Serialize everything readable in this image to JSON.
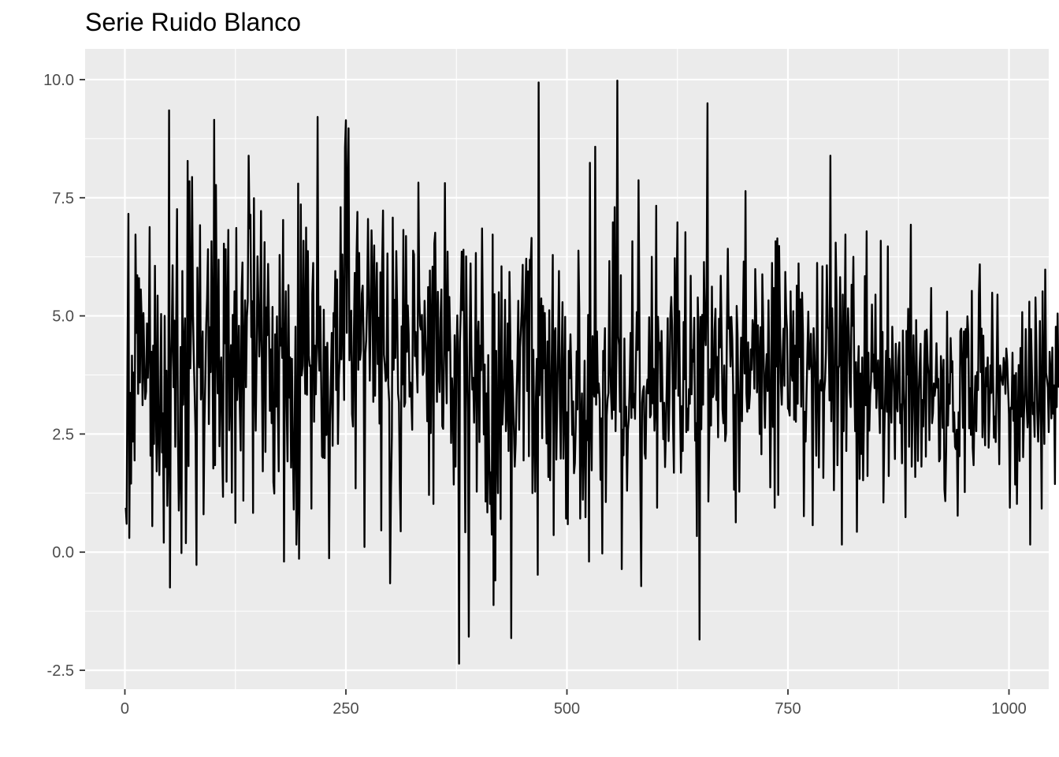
{
  "chart_data": {
    "type": "line",
    "title": "Serie Ruido Blanco",
    "xlabel": "",
    "ylabel": "",
    "xlim": [
      -45,
      1045
    ],
    "ylim": [
      -2.9,
      10.65
    ],
    "x_ticks": [
      0,
      250,
      500,
      750,
      1000
    ],
    "x_tick_labels": [
      "0",
      "250",
      "500",
      "750",
      "1000"
    ],
    "y_ticks": [
      -2.5,
      0,
      2.5,
      5,
      7.5,
      10
    ],
    "y_tick_labels": [
      "-2.5",
      "0.0",
      "2.5",
      "5.0",
      "7.5",
      "10.0"
    ],
    "grid": true,
    "legend": "none",
    "line_color": "#000000",
    "panel_background": "#ebebeb",
    "grid_color": "#ffffff",
    "series": [
      {
        "x_start": 1,
        "x_step": 1,
        "values": [
          0.94,
          0.6,
          4.2,
          7.16,
          0.3,
          3.37,
          1.45,
          4.16,
          2.34,
          3.8,
          1.94,
          6.72,
          4.64,
          5.86,
          3.35,
          5.8,
          3.59,
          5.56,
          4.91,
          3.11,
          5.06,
          4.01,
          3.24,
          3.4,
          4.84,
          3.69,
          4.41,
          6.88,
          2.04,
          4.24,
          0.55,
          4.37,
          2.29,
          6.06,
          3.19,
          1.71,
          5.43,
          2.55,
          1.63,
          3.14,
          5.04,
          2.11,
          2.94,
          0.2,
          5.0,
          1.8,
          3.84,
          0.98,
          2.06,
          9.35,
          -0.75,
          3.82,
          4.58,
          6.07,
          3.49,
          4.9,
          2.23,
          4.81,
          7.26,
          2.49,
          0.88,
          1.72,
          4.34,
          -0.02,
          5.95,
          3.12,
          4.26,
          4.95,
          0.19,
          2.44,
          8.28,
          1.82,
          7.85,
          3.89,
          4.93,
          7.94,
          5.08,
          4.04,
          3.3,
          2.44,
          -0.27,
          6.02,
          4.34,
          3.91,
          6.92,
          3.23,
          3.99,
          4.67,
          0.8,
          2.7,
          3.67,
          4.79,
          5.37,
          6.41,
          2.71,
          4.76,
          3.81,
          6.58,
          4.63,
          1.77,
          9.15,
          1.84,
          7.77,
          4.47,
          3.36,
          6.19,
          2.24,
          3.83,
          4.12,
          2.21,
          1.17,
          6.53,
          4.42,
          6.41,
          1.49,
          5.03,
          6.82,
          2.58,
          3.5,
          4.38,
          1.26,
          5.02,
          3.71,
          5.52,
          0.62,
          6.86,
          3.22,
          3.71,
          4.79,
          3.07,
          2.15,
          5.5,
          6.13,
          1.09,
          4.42,
          5.33,
          3.49,
          4.97,
          5.31,
          8.39,
          6.85,
          7.14,
          4.55,
          5.31,
          0.83,
          7.49,
          3.65,
          2.57,
          4.16,
          6.26,
          5.33,
          4.14,
          4.66,
          7.22,
          3.8,
          1.71,
          4.34,
          6.56,
          2.12,
          5.18,
          4.59,
          6.1,
          4.83,
          2.99,
          4.29,
          2.73,
          5.19,
          1.48,
          1.24,
          4.61,
          3.08,
          4.99,
          3.05,
          1.71,
          6.29,
          4.37,
          4.73,
          4.11,
          7.03,
          -0.2,
          4.29,
          5.52,
          3.09,
          1.92,
          5.65,
          3.27,
          4.12,
          1.79,
          4.09,
          2.21,
          0.9,
          2.6,
          4.77,
          0.16,
          1.04,
          7.8,
          -0.14,
          2.55,
          7.36,
          3.74,
          3.94,
          6.59,
          4.48,
          3.35,
          6.87,
          3.33,
          6.37,
          4.17,
          3.94,
          3.95,
          0.92,
          5.46,
          6.12,
          2.76,
          4.37,
          3.34,
          4.62,
          9.21,
          4.34,
          3.84,
          5.2,
          3.67,
          2.03,
          2.0,
          5.13,
          1.99,
          4.34,
          2.48,
          4.43,
          3.09,
          -0.13,
          2.7,
          3.67,
          4.64,
          2.25,
          5.06,
          4.77,
          5.95,
          3.43,
          5.77,
          2.29,
          3.66,
          4.1,
          7.3,
          4.08,
          6.3,
          4.85,
          3.22,
          8.56,
          9.14,
          4.64,
          7.65,
          8.97,
          4.06,
          4.66,
          5.11,
          2.92,
          2.66,
          4.58,
          5.91,
          1.35,
          6.19,
          7.2,
          3.86,
          6.33,
          4.07,
          4.27,
          5.47,
          5.64,
          4.54,
          0.11,
          4.19,
          4.49,
          5.28,
          7.05,
          5.35,
          3.63,
          4.98,
          6.81,
          5.78,
          3.18,
          6.49,
          3.31,
          5.17,
          6.12,
          3.98,
          4.96,
          2.72,
          5.92,
          0.46,
          6.06,
          7.23,
          4.18,
          3.96,
          3.62,
          3.71,
          6.32,
          3.54,
          3.18,
          -0.66,
          1.35,
          2.45,
          7.08,
          3.86,
          5.34,
          4.11,
          6.37,
          5.15,
          3.36,
          3.17,
          1.44,
          0.44,
          4.78,
          3.55,
          6.82,
          3.08,
          3.16,
          6.69,
          4.24,
          5.22,
          4.62,
          3.29,
          3.59,
          3.29,
          2.59,
          6.38,
          6.3,
          4.15,
          4.66,
          4.02,
          3.38,
          7.82,
          5.44,
          4.79,
          4.71,
          5.02,
          3.75,
          3.83,
          5.32,
          4.49,
          4.06,
          2.77,
          5.61,
          1.21,
          5.96,
          2.52,
          4.79,
          6.04,
          1.02,
          6.53,
          6.76,
          4.74,
          3.18,
          5.51,
          3.72,
          3.39,
          4.93,
          5.56,
          2.67,
          2.61,
          4.22,
          7.81,
          4.38,
          3.15,
          6.36,
          4.27,
          5.4,
          4.39,
          2.31,
          3.68,
          3.17,
          1.43,
          4.59,
          1.81,
          4.0,
          5.01,
          3.98,
          -2.36,
          4.45,
          5.17,
          6.36,
          5.12,
          6.4,
          3.69,
          0.42,
          6.26,
          4.2,
          2.97,
          -1.79,
          4.35,
          6.11,
          4.15,
          3.44,
          3.69,
          2.74,
          3.79,
          6.33,
          1.28,
          4.47,
          4.88,
          2.33,
          4.37,
          3.85,
          6.85,
          4.76,
          2.49,
          3.97,
          1.07,
          3.36,
          0.84,
          4.17,
          2.08,
          1.02,
          1.69,
          0.37,
          6.72,
          -1.12,
          5.46,
          -0.6,
          4.26,
          2.3,
          1.25,
          5.5,
          3.57,
          0.7,
          6.05,
          2.7,
          3.21,
          3.69,
          5.34,
          2.56,
          2.91,
          4.84,
          2.14,
          5.93,
          4.55,
          -1.82,
          4.05,
          3.32,
          2.65,
          1.81,
          2.29,
          3.27,
          4.04,
          5.32,
          2.59,
          4.33,
          4.72,
          5.24,
          6.08,
          1.94,
          4.71,
          5.43,
          6.21,
          3.41,
          5.94,
          2.03,
          6.19,
          6.13,
          6.65,
          1.25,
          4.28,
          2.58,
          1.28,
          3.29,
          4.09,
          -0.48,
          9.94,
          3.32,
          4.1,
          5.37,
          2.41,
          5.21,
          3.89,
          5.06,
          3.29,
          2.3,
          4.46,
          1.59,
          5.12,
          1.52,
          3.11,
          4.34,
          6.29,
          0.36,
          4.64,
          4.74,
          1.96,
          3.23,
          4.34,
          5.95,
          3.23,
          1.98,
          4.04,
          5.29,
          1.98,
          3.13,
          4.98,
          0.71,
          2.96,
          0.59,
          4.26,
          3.68,
          4.61,
          3.72,
          2.48,
          3.19,
          1.67,
          1.88,
          2.71,
          4.25,
          3.02,
          6.38,
          5.13,
          0.71,
          2.79,
          3.36,
          1.11,
          2.47,
          4.05,
          0.74,
          2.78,
          2.37,
          5.02,
          -0.2,
          8.24,
          2.98,
          1.73,
          4.57,
          3.43,
          3.29,
          8.58,
          3.12,
          4.67,
          3.37,
          3.57,
          3.23,
          1.53,
          2.83,
          -0.03,
          4.26,
          3.85,
          4.74,
          1.06,
          2.89,
          3.24,
          3.37,
          6.16,
          3.94,
          3.29,
          2.82,
          6.98,
          3.01,
          7.3,
          2.56,
          4.25,
          9.98,
          4.57,
          4.38,
          2.97,
          5.86,
          -0.36,
          2.59,
          2.05,
          4.52,
          2.67,
          3.08,
          1.3,
          2.58,
          2.82,
          3.56,
          4.64,
          2.84,
          6.58,
          3.06,
          3.35,
          2.82,
          3.96,
          5.08,
          4.28,
          7.87,
          4.95,
          1.62,
          -0.72,
          3.16,
          3.41,
          3.51,
          2.09,
          1.98,
          3.4,
          3.65,
          3.36,
          4.97,
          2.85,
          2.91,
          6.25,
          3.15,
          3.88,
          2.57,
          3.06,
          7.33,
          0.94,
          4.98,
          4.29,
          4.43,
          3.19,
          4.68,
          3.42,
          2.39,
          3.16,
          1.8,
          2.61,
          3.61,
          4.95,
          2.35,
          3.32,
          4.99,
          5.4,
          4.76,
          2.71,
          1.68,
          6.22,
          3.46,
          5.3,
          6.98,
          3.31,
          5.1,
          3.03,
          1.68,
          3.09,
          2.14,
          4.87,
          3.66,
          6.77,
          2.54,
          3.04,
          2.58,
          3.45,
          3.14,
          5.85,
          3.34,
          4.28,
          4.03,
          4.96,
          2.36,
          2.73,
          0.34,
          5.39,
          4.45,
          -1.85,
          4.98,
          2.6,
          5.02,
          3.12,
          6.14,
          4.67,
          4.38,
          5.62,
          9.5,
          1.07,
          2.44,
          3.87,
          2.68,
          5.62,
          3.28,
          3.35,
          4.7,
          5.15,
          3.22,
          4.13,
          2.43,
          4.94,
          4.33,
          5.85,
          4.58,
          3.02,
          2.73,
          3.95,
          2.35,
          2.51,
          4.81,
          6.42,
          4.73,
          4.97,
          3.93,
          4.98,
          4.51,
          3.52,
          1.32,
          3.33,
          0.63,
          5.21,
          4.62,
          3.08,
          1.28,
          3.42,
          4.54,
          2.77,
          4.72,
          6.15,
          3.78,
          7.64,
          3.36,
          2.97,
          4.44,
          3.04,
          3.35,
          4.29,
          3.86,
          4.91,
          4.7,
          3.46,
          5.99,
          5.11,
          3.38,
          4.8,
          4.12,
          2.5,
          4.76,
          2.07,
          5.88,
          4.84,
          3.46,
          2.63,
          3.79,
          4.19,
          3.41,
          5.33,
          3.7,
          1.37,
          3.14,
          6.12,
          2.65,
          5.59,
          0.94,
          6.58,
          3.93,
          6.64,
          1.21,
          6.48,
          4.95,
          3.59,
          3.12,
          4.09,
          4.73,
          3.52,
          5.93,
          5.07,
          4.71,
          3.04,
          3.01,
          2.89,
          5.52,
          3.86,
          3.63,
          5.1,
          2.8,
          4.37,
          2.76,
          5.64,
          3.14,
          6.11,
          4.13,
          5.35,
          3.08,
          5.49,
          4.61,
          0.76,
          2.97,
          2.34,
          3.32,
          4.21,
          5.09,
          3.87,
          3.99,
          4.62,
          3.58,
          0.57,
          4.74,
          4.19,
          3.66,
          2.04,
          6.12,
          3.69,
          1.79,
          3.51,
          3.64,
          3.42,
          6.05,
          1.57,
          3.39,
          3.63,
          4.23,
          6.07,
          4.77,
          4.71,
          3.21,
          8.39,
          2.77,
          5.16,
          4.21,
          1.31,
          3.09,
          6.55,
          5.36,
          1.84,
          3.89,
          3.95,
          5.82,
          4.41,
          0.16,
          5.45,
          2.56,
          4.47,
          6.72,
          2.14,
          4.22,
          5.16,
          4.55,
          3.39,
          3.07,
          5.66,
          4.79,
          6.25,
          3.75,
          2.56,
          4.02,
          0.43,
          3.67,
          4.36,
          1.55,
          3.78,
          2.08,
          4.12,
          1.52,
          2.83,
          5.84,
          3.11,
          6.79,
          1.61,
          4.22,
          2.57,
          3.34,
          3.64,
          5.24,
          3.82,
          4.18,
          3.47,
          5.45,
          3.05,
          3.79,
          4.06,
          3.22,
          2.52,
          6.59,
          3.04,
          4.66,
          1.05,
          2.46,
          3.39,
          4.26,
          2.97,
          6.47,
          1.61,
          4.09,
          3.51,
          2.74,
          4.77,
          3.94,
          3.39,
          1.97,
          4.41,
          3.15,
          2.98,
          4.09,
          4.44,
          2.73,
          3.13,
          1.88,
          4.69,
          3.43,
          2.96,
          0.74,
          4.68,
          3.76,
          5.15,
          2.23,
          4.48,
          6.93,
          1.81,
          3.07,
          4.59,
          3.41,
          1.59,
          4.91,
          3.39,
          1.93,
          3.43,
          3.96,
          4.41,
          1.81,
          3.22,
          2.66,
          3.85,
          4.68,
          2.02,
          4.71,
          4.01,
          3.76,
          2.37,
          4.12,
          5.59,
          2.73,
          2.94,
          3.57,
          3.31,
          3.52,
          4.42,
          3.48,
          3.67,
          1.92,
          1.98,
          4.15,
          3.72,
          2.63,
          4.07,
          1.33,
          1.08,
          2.22,
          5.09,
          2.68,
          3.55,
          3.14,
          4.53,
          3.81,
          4.04,
          2.55,
          2.96,
          2.23,
          2.18,
          2.59,
          0.77,
          2.96,
          2.03,
          4.68,
          4.73,
          3.92,
          2.63,
          4.67,
          1.27,
          4.72,
          4.12,
          4.99,
          4.62,
          2.62,
          3.47,
          2.48,
          5.53,
          2.21,
          1.84,
          3.11,
          3.73,
          2.56,
          3.81,
          3.43,
          5.46,
          6.09,
          3.81,
          4.73,
          2.43,
          4.58,
          2.97,
          2.26,
          3.9,
          3.51,
          4.12,
          2.21,
          2.91,
          3.95,
          3.37,
          5.49,
          3.71,
          2.42,
          2.87,
          2.33,
          3.58,
          5.45,
          3.41,
          1.86,
          3.95,
          3.73,
          3.64,
          3.54,
          4.11,
          3.93,
          3.35,
          4.31,
          4.05,
          3.48,
          2.91,
          0.94,
          3.06,
          3.03,
          4.22,
          2.78,
          3.74,
          1.43,
          3.79,
          1.02,
          2.76,
          3.96,
          1.93,
          4.32,
          2.87,
          5.08,
          2.01,
          2.91,
          3.45,
          4.72,
          3.12,
          2.64,
          2.93,
          5.3,
          0.16,
          4.72,
          3.82,
          2.92,
          3.16,
          2.44,
          5.39,
          4.37,
          2.97,
          2.34,
          3.1,
          4.89,
          3.02,
          0.92,
          5.52,
          3.47,
          2.29,
          5.98,
          3.79,
          3.65,
          3.48,
          2.54,
          4.24,
          3.82,
          2.83,
          4.33,
          2.93,
          3.53,
          1.44,
          4.77,
          3.07,
          5.05,
          3.5,
          3.93
        ]
      }
    ]
  }
}
